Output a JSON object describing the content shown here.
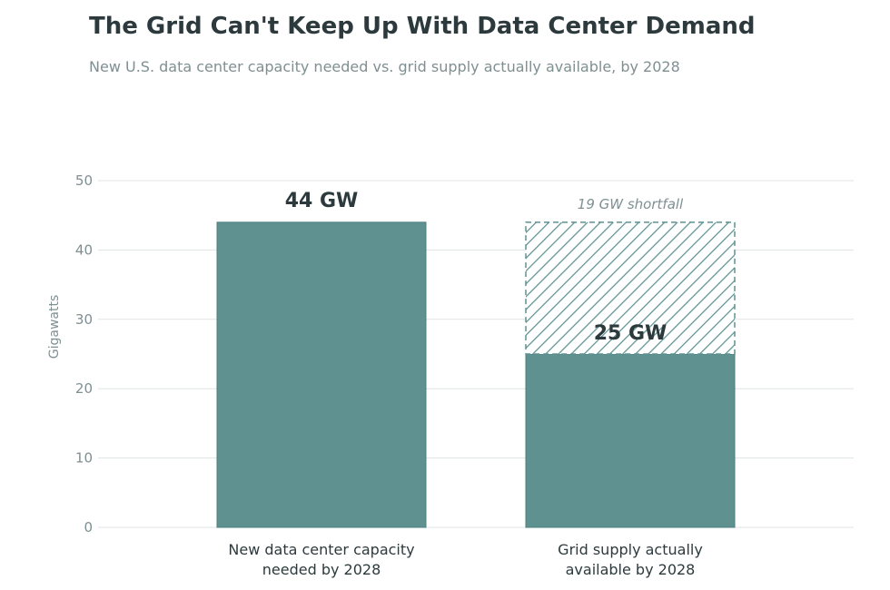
{
  "title": "The Grid Can't Keep Up With Data Center Demand",
  "subtitle": "New U.S. data center capacity needed vs. grid supply actually available, by 2028",
  "colors": {
    "bar": "#5f9191",
    "bar_stroke": "#4e7f7f",
    "grid": "#dfe3e4",
    "text": "#2d3a3d",
    "muted": "#7f8f92"
  },
  "chart_data": {
    "type": "bar",
    "ylabel": "Gigawatts",
    "ylim": [
      0,
      50
    ],
    "yticks": [
      0,
      10,
      20,
      30,
      40,
      50
    ],
    "grid": true,
    "categories": [
      [
        "New data center capacity",
        "needed by 2028"
      ],
      [
        "Grid supply actually",
        "available by 2028"
      ]
    ],
    "values": [
      44,
      25
    ],
    "value_labels": [
      "44 GW",
      "25 GW"
    ],
    "shortfall": {
      "category_index": 1,
      "from": 25,
      "to": 44,
      "label": "19 GW shortfall"
    }
  }
}
